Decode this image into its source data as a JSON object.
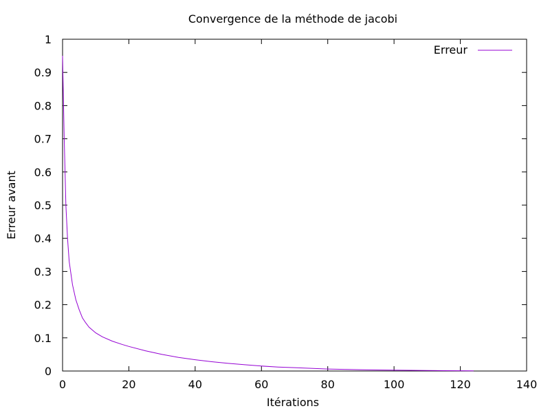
{
  "chart_data": {
    "type": "line",
    "title": "Convergence de la méthode de jacobi",
    "xlabel": "Itérations",
    "ylabel": "Erreur avant",
    "xlim": [
      0,
      140
    ],
    "ylim": [
      0,
      1
    ],
    "xticks": [
      0,
      20,
      40,
      60,
      80,
      100,
      120,
      140
    ],
    "yticks": [
      0,
      0.1,
      0.2,
      0.3,
      0.4,
      0.5,
      0.6,
      0.7,
      0.8,
      0.9,
      1
    ],
    "ytick_labels": [
      "0",
      "0.1",
      "0.2",
      "0.3",
      "0.4",
      "0.5",
      "0.6",
      "0.7",
      "0.8",
      "0.9",
      "1"
    ],
    "grid": false,
    "legend_position": "top-right",
    "series": [
      {
        "name": "Erreur",
        "color": "#9400d3",
        "x": [
          0,
          0.5,
          1,
          1.5,
          2,
          3,
          4,
          5,
          6,
          7,
          8,
          10,
          12,
          15,
          18,
          20,
          25,
          30,
          35,
          40,
          45,
          50,
          55,
          60,
          65,
          70,
          75,
          80,
          85,
          90,
          95,
          100,
          105,
          110,
          115,
          120,
          124
        ],
        "y": [
          0.95,
          0.7,
          0.5,
          0.4,
          0.33,
          0.26,
          0.215,
          0.185,
          0.16,
          0.145,
          0.132,
          0.115,
          0.103,
          0.09,
          0.08,
          0.074,
          0.061,
          0.05,
          0.041,
          0.034,
          0.028,
          0.023,
          0.019,
          0.015,
          0.012,
          0.01,
          0.008,
          0.006,
          0.005,
          0.004,
          0.003,
          0.0025,
          0.002,
          0.0015,
          0.001,
          0.0008,
          0.0006
        ]
      }
    ]
  }
}
